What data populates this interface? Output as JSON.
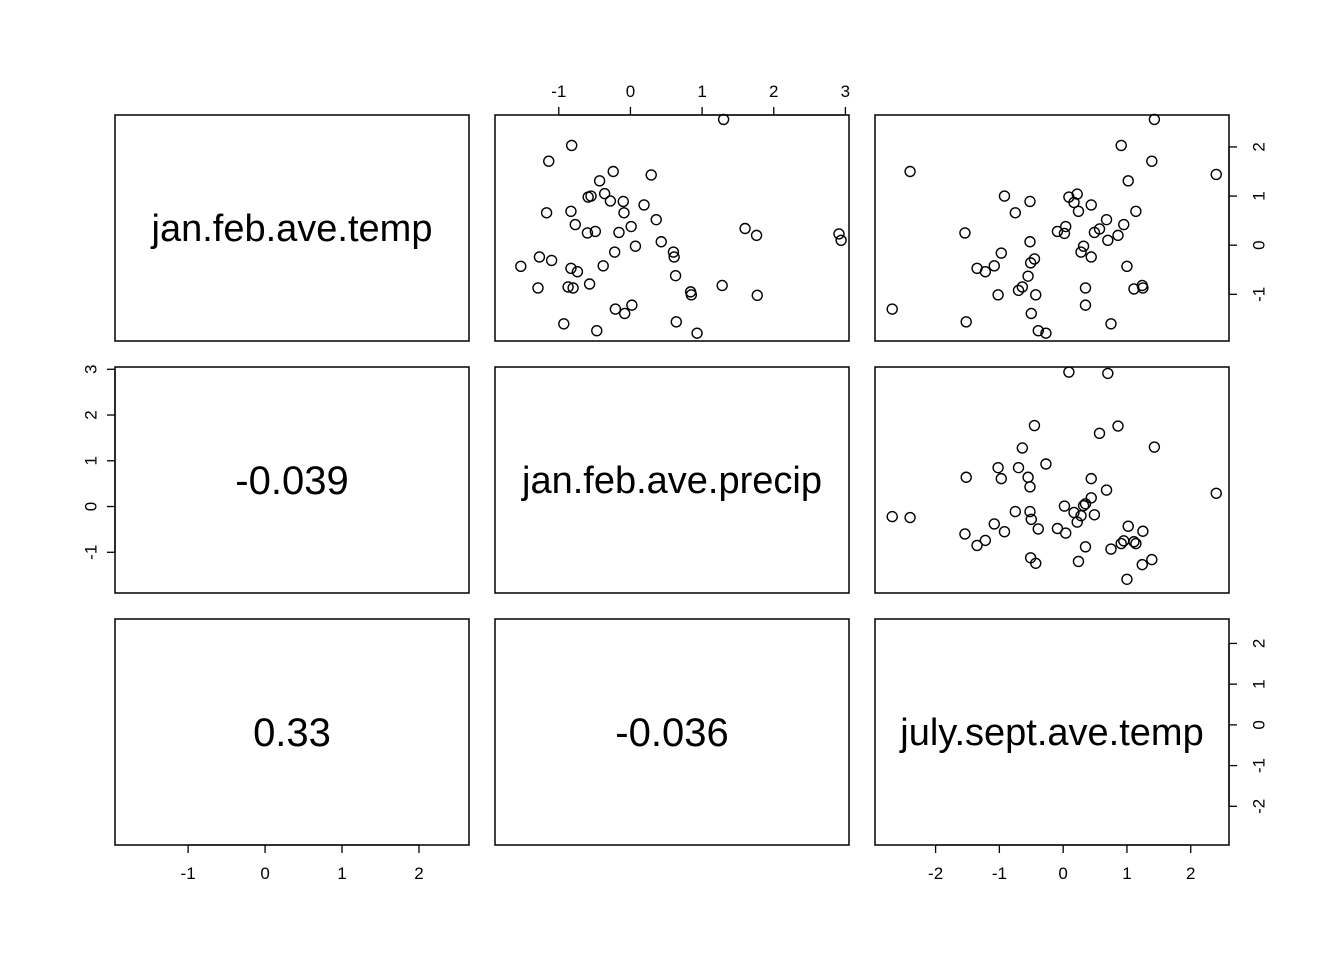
{
  "chart_data": {
    "type": "scatter",
    "variables": [
      "jan.feb.ave.temp",
      "jan.feb.ave.precip",
      "july.sept.ave.temp"
    ],
    "correlations": [
      {
        "row": 2,
        "col": 1,
        "label": "-0.039"
      },
      {
        "row": 3,
        "col": 1,
        "label": "0.33"
      },
      {
        "row": 3,
        "col": 2,
        "label": "-0.036"
      }
    ],
    "axes": {
      "jan.feb.ave.temp": {
        "range": [
          -1.95,
          2.65
        ],
        "ticks": [
          "-1",
          "0",
          "1",
          "2"
        ],
        "tick_values": [
          -1,
          0,
          1,
          2
        ]
      },
      "jan.feb.ave.precip": {
        "range": [
          -1.89,
          3.05
        ],
        "ticks": [
          "-1",
          "0",
          "1",
          "2",
          "3"
        ],
        "tick_values": [
          -1,
          0,
          1,
          2,
          3
        ]
      },
      "july.sept.ave.temp": {
        "range": [
          -2.95,
          2.6
        ],
        "ticks": [
          "-2",
          "-1",
          "0",
          "1",
          "2"
        ],
        "tick_values": [
          -2,
          -1,
          0,
          1,
          2
        ]
      }
    },
    "panels": [
      {
        "row": 1,
        "col": 2,
        "x_var": "jan.feb.ave.precip",
        "y_var": "jan.feb.ave.temp",
        "points": [
          [
            -1.53,
            -0.43
          ],
          [
            -1.29,
            -0.87
          ],
          [
            -1.27,
            -0.24
          ],
          [
            -1.17,
            0.66
          ],
          [
            -1.14,
            1.71
          ],
          [
            -1.1,
            -0.31
          ],
          [
            -0.93,
            -1.6
          ],
          [
            -0.87,
            -0.85
          ],
          [
            -0.83,
            0.69
          ],
          [
            -0.83,
            -0.47
          ],
          [
            -0.82,
            2.03
          ],
          [
            -0.8,
            -0.87
          ],
          [
            -0.77,
            0.42
          ],
          [
            -0.74,
            -0.54
          ],
          [
            -0.6,
            0.25
          ],
          [
            -0.59,
            0.98
          ],
          [
            -0.57,
            -0.79
          ],
          [
            -0.55,
            1.0
          ],
          [
            -0.49,
            0.28
          ],
          [
            -0.47,
            -1.74
          ],
          [
            -0.43,
            1.31
          ],
          [
            -0.38,
            -0.42
          ],
          [
            -0.36,
            1.05
          ],
          [
            -0.28,
            0.9
          ],
          [
            -0.24,
            1.5
          ],
          [
            -0.22,
            -0.14
          ],
          [
            -0.21,
            -1.3
          ],
          [
            -0.16,
            0.26
          ],
          [
            -0.1,
            0.89
          ],
          [
            -0.09,
            0.66
          ],
          [
            -0.08,
            -1.39
          ],
          [
            0.01,
            0.38
          ],
          [
            0.02,
            -1.22
          ],
          [
            0.07,
            -0.02
          ],
          [
            0.19,
            0.82
          ],
          [
            0.29,
            1.43
          ],
          [
            0.36,
            0.52
          ],
          [
            0.43,
            0.07
          ],
          [
            0.6,
            -0.14
          ],
          [
            0.61,
            -0.24
          ],
          [
            0.63,
            -0.62
          ],
          [
            0.64,
            -1.56
          ],
          [
            0.84,
            -0.95
          ],
          [
            0.85,
            -1.01
          ],
          [
            0.93,
            -1.79
          ],
          [
            1.3,
            2.56
          ],
          [
            1.28,
            -0.82
          ],
          [
            1.6,
            0.34
          ],
          [
            1.76,
            0.2
          ],
          [
            1.77,
            -1.02
          ],
          [
            2.91,
            0.23
          ],
          [
            2.94,
            0.1
          ]
        ]
      },
      {
        "row": 1,
        "col": 3,
        "x_var": "july.sept.ave.temp",
        "y_var": "jan.feb.ave.temp",
        "points": [
          [
            -2.68,
            -1.3
          ],
          [
            -2.4,
            1.5
          ],
          [
            -1.54,
            0.25
          ],
          [
            -1.52,
            -1.56
          ],
          [
            -1.35,
            -0.47
          ],
          [
            -1.22,
            -0.54
          ],
          [
            -1.08,
            -0.42
          ],
          [
            -1.02,
            -1.01
          ],
          [
            -0.97,
            -0.16
          ],
          [
            -0.92,
            1.0
          ],
          [
            -0.75,
            0.66
          ],
          [
            -0.7,
            -0.92
          ],
          [
            -0.64,
            -0.85
          ],
          [
            -0.55,
            -0.63
          ],
          [
            -0.52,
            0.07
          ],
          [
            -0.52,
            0.89
          ],
          [
            -0.51,
            -0.36
          ],
          [
            -0.5,
            -1.39
          ],
          [
            -0.45,
            -0.28
          ],
          [
            -0.43,
            -1.01
          ],
          [
            -0.39,
            -1.74
          ],
          [
            -0.27,
            -1.79
          ],
          [
            -0.09,
            0.28
          ],
          [
            0.02,
            0.24
          ],
          [
            0.04,
            0.38
          ],
          [
            0.09,
            0.98
          ],
          [
            0.17,
            0.87
          ],
          [
            0.22,
            1.04
          ],
          [
            0.24,
            0.69
          ],
          [
            0.28,
            -0.14
          ],
          [
            0.32,
            -0.02
          ],
          [
            0.35,
            -0.87
          ],
          [
            0.35,
            -1.22
          ],
          [
            0.44,
            0.82
          ],
          [
            0.44,
            -0.24
          ],
          [
            0.49,
            0.26
          ],
          [
            0.57,
            0.33
          ],
          [
            0.68,
            0.52
          ],
          [
            0.7,
            0.1
          ],
          [
            0.75,
            -1.6
          ],
          [
            0.86,
            0.2
          ],
          [
            0.91,
            2.03
          ],
          [
            0.95,
            0.42
          ],
          [
            1.0,
            -0.43
          ],
          [
            1.02,
            1.31
          ],
          [
            1.11,
            -0.89
          ],
          [
            1.14,
            0.69
          ],
          [
            1.24,
            -0.82
          ],
          [
            1.25,
            -0.87
          ],
          [
            1.39,
            1.71
          ],
          [
            1.43,
            2.56
          ],
          [
            2.4,
            1.44
          ]
        ]
      },
      {
        "row": 2,
        "col": 3,
        "x_var": "july.sept.ave.temp",
        "y_var": "jan.feb.ave.precip",
        "points": [
          [
            -2.68,
            -0.22
          ],
          [
            -2.4,
            -0.24
          ],
          [
            -1.54,
            -0.6
          ],
          [
            -1.52,
            0.64
          ],
          [
            -1.35,
            -0.85
          ],
          [
            -1.22,
            -0.74
          ],
          [
            -1.08,
            -0.38
          ],
          [
            -1.02,
            0.85
          ],
          [
            -0.97,
            0.61
          ],
          [
            -0.92,
            -0.55
          ],
          [
            -0.75,
            -0.11
          ],
          [
            -0.7,
            0.85
          ],
          [
            -0.64,
            1.28
          ],
          [
            -0.55,
            0.64
          ],
          [
            -0.52,
            0.43
          ],
          [
            -0.52,
            -0.11
          ],
          [
            -0.51,
            -1.12
          ],
          [
            -0.5,
            -0.28
          ],
          [
            -0.45,
            1.77
          ],
          [
            -0.43,
            -1.24
          ],
          [
            -0.39,
            -0.49
          ],
          [
            -0.27,
            0.93
          ],
          [
            -0.09,
            -0.48
          ],
          [
            0.02,
            0.01
          ],
          [
            0.04,
            -0.58
          ],
          [
            0.09,
            2.94
          ],
          [
            0.17,
            -0.13
          ],
          [
            0.22,
            -0.34
          ],
          [
            0.24,
            -1.2
          ],
          [
            0.28,
            -0.2
          ],
          [
            0.32,
            0.02
          ],
          [
            0.35,
            -0.88
          ],
          [
            0.35,
            0.06
          ],
          [
            0.44,
            0.61
          ],
          [
            0.44,
            0.19
          ],
          [
            0.49,
            -0.18
          ],
          [
            0.57,
            1.6
          ],
          [
            0.68,
            0.36
          ],
          [
            0.7,
            2.91
          ],
          [
            0.75,
            -0.93
          ],
          [
            0.86,
            1.76
          ],
          [
            0.91,
            -0.81
          ],
          [
            0.95,
            -0.75
          ],
          [
            1.0,
            -1.59
          ],
          [
            1.02,
            -0.43
          ],
          [
            1.11,
            -0.77
          ],
          [
            1.14,
            -0.81
          ],
          [
            1.24,
            -1.27
          ],
          [
            1.25,
            -0.54
          ],
          [
            1.39,
            -1.16
          ],
          [
            1.43,
            1.3
          ],
          [
            2.4,
            0.29
          ]
        ]
      }
    ]
  }
}
